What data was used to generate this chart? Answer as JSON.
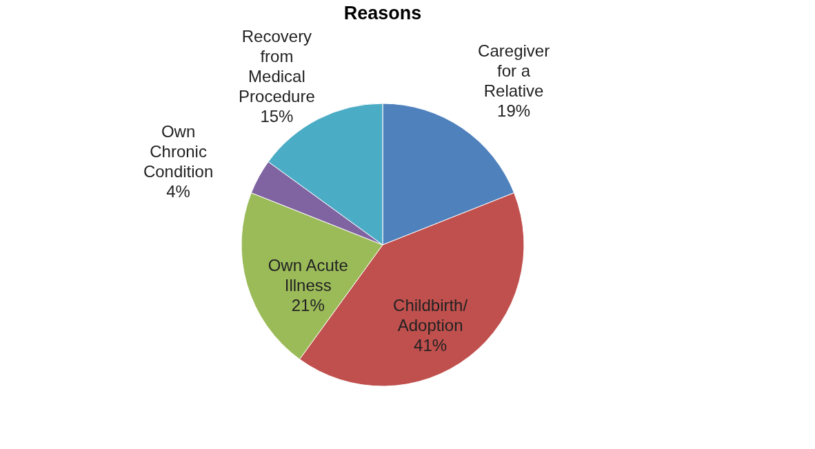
{
  "chart_data": {
    "type": "pie",
    "title": "Reasons",
    "categories": [
      "Caregiver for a Relative",
      "Childbirth/Adoption",
      "Own Acute Illness",
      "Own Chronic Condition",
      "Recovery from Medical Procedure"
    ],
    "values": [
      19,
      41,
      21,
      4,
      15
    ],
    "colors": [
      "#4f81bd",
      "#c0504d",
      "#9bbb59",
      "#8064a2",
      "#4bacc6"
    ],
    "value_labels": [
      "19%",
      "41%",
      "21%",
      "4%",
      "15%"
    ],
    "legend": false
  }
}
